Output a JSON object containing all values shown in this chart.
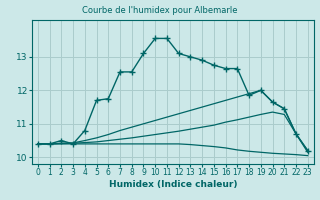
{
  "title": "Courbe de l'humidex pour Albemarle",
  "xlabel": "Humidex (Indice chaleur)",
  "bg_color": "#cce8e8",
  "grid_color": "#aacccc",
  "line_color": "#006666",
  "xlim": [
    -0.5,
    23.5
  ],
  "ylim": [
    9.8,
    14.1
  ],
  "yticks": [
    10,
    11,
    12,
    13
  ],
  "xticks": [
    0,
    1,
    2,
    3,
    4,
    5,
    6,
    7,
    8,
    9,
    10,
    11,
    12,
    13,
    14,
    15,
    16,
    17,
    18,
    19,
    20,
    21,
    22,
    23
  ],
  "series1_x": [
    0,
    1,
    2,
    3,
    4,
    5,
    6,
    7,
    8,
    9,
    10,
    11,
    12,
    13,
    14,
    15,
    16,
    17,
    18,
    19,
    20,
    21,
    22,
    23
  ],
  "series1_y": [
    10.4,
    10.4,
    10.5,
    10.4,
    10.8,
    11.7,
    11.75,
    12.55,
    12.55,
    13.1,
    13.55,
    13.55,
    13.1,
    13.0,
    12.9,
    12.75,
    12.65,
    12.65,
    11.85,
    12.0,
    11.65,
    11.45,
    10.7,
    10.2
  ],
  "series2_x": [
    0,
    1,
    2,
    3,
    4,
    5,
    6,
    7,
    8,
    9,
    10,
    11,
    12,
    13,
    14,
    15,
    16,
    17,
    18,
    19,
    20,
    21,
    22,
    23
  ],
  "series2_y": [
    10.4,
    10.4,
    10.42,
    10.43,
    10.5,
    10.58,
    10.68,
    10.8,
    10.9,
    11.0,
    11.1,
    11.2,
    11.3,
    11.4,
    11.5,
    11.6,
    11.7,
    11.8,
    11.9,
    12.0,
    11.65,
    11.45,
    10.7,
    10.2
  ],
  "series3_x": [
    0,
    1,
    2,
    3,
    4,
    5,
    6,
    7,
    8,
    9,
    10,
    11,
    12,
    13,
    14,
    15,
    16,
    17,
    18,
    19,
    20,
    21,
    22,
    23
  ],
  "series3_y": [
    10.4,
    10.4,
    10.41,
    10.42,
    10.44,
    10.46,
    10.5,
    10.54,
    10.58,
    10.63,
    10.68,
    10.73,
    10.78,
    10.84,
    10.9,
    10.96,
    11.05,
    11.12,
    11.2,
    11.28,
    11.35,
    11.28,
    10.7,
    10.15
  ],
  "series4_x": [
    0,
    1,
    2,
    3,
    4,
    5,
    6,
    7,
    8,
    9,
    10,
    11,
    12,
    13,
    14,
    15,
    16,
    17,
    18,
    19,
    20,
    21,
    22,
    23
  ],
  "series4_y": [
    10.4,
    10.4,
    10.4,
    10.4,
    10.4,
    10.4,
    10.4,
    10.4,
    10.4,
    10.4,
    10.4,
    10.4,
    10.4,
    10.38,
    10.35,
    10.32,
    10.28,
    10.22,
    10.18,
    10.15,
    10.12,
    10.1,
    10.08,
    10.05
  ]
}
